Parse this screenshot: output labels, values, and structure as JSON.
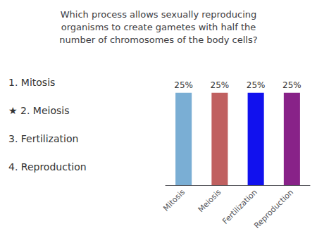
{
  "chart_data": {
    "type": "bar",
    "title": "Which process allows sexually reproducing\norganisms to create gametes with half the\nnumber of chromosomes of the body cells?",
    "annotations": [
      "1. Mitosis",
      "★ 2. Meiosis",
      "3. Fertilization",
      "4. Reproduction"
    ],
    "categories": [
      "Mitosis",
      "Meiosis",
      "Fertilization",
      "Reproduction"
    ],
    "values": [
      25,
      25,
      25,
      25
    ],
    "value_labels": [
      "25%",
      "25%",
      "25%",
      "25%"
    ],
    "colors": [
      "#7aaed4",
      "#c06060",
      "#1111ee",
      "#882288"
    ],
    "data_labels": true,
    "ylim": [
      0,
      32
    ],
    "yticks": [],
    "tick_labels": "x",
    "grid": false
  }
}
